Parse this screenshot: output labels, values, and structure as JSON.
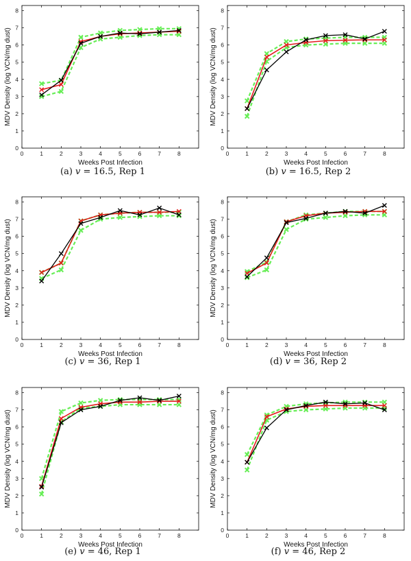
{
  "figure": {
    "ylabel": "MDV Density (log VCN/mg dust)",
    "xlabel": "Weeks Post Infection",
    "colors": {
      "observed": "#000000",
      "model": "#e41a1c",
      "bounds": "#66ee55"
    }
  },
  "chart_data": [
    {
      "type": "line",
      "caption_prefix": "(a)",
      "caption_var": "v",
      "caption_rest": " = 16.5, Rep 1",
      "xlabel": "Weeks Post Infection",
      "ylabel": "MDV Density (log VCN/mg dust)",
      "xlim": [
        0,
        9
      ],
      "ylim": [
        0,
        8.3
      ],
      "xticks": [
        0,
        1,
        2,
        3,
        4,
        5,
        6,
        7,
        8
      ],
      "yticks": [
        0,
        1,
        2,
        3,
        4,
        5,
        6,
        7,
        8
      ],
      "x": [
        1,
        2,
        3,
        4,
        5,
        6,
        7,
        8
      ],
      "series": [
        {
          "role": "upper",
          "values": [
            3.75,
            3.95,
            6.45,
            6.7,
            6.85,
            6.9,
            6.95,
            6.95
          ]
        },
        {
          "role": "lower",
          "values": [
            3.0,
            3.3,
            5.85,
            6.35,
            6.45,
            6.55,
            6.6,
            6.6
          ]
        },
        {
          "role": "model",
          "values": [
            3.4,
            3.7,
            6.2,
            6.5,
            6.65,
            6.7,
            6.75,
            6.8
          ]
        },
        {
          "role": "observed",
          "values": [
            3.1,
            3.95,
            6.1,
            6.5,
            6.7,
            6.65,
            6.75,
            6.85
          ]
        }
      ]
    },
    {
      "type": "line",
      "caption_prefix": "(b)",
      "caption_var": "v",
      "caption_rest": " = 16.5, Rep 2",
      "xlabel": "Weeks Post Infection",
      "ylabel": "MDV Density (log VCN/mg dust)",
      "xlim": [
        0,
        9
      ],
      "ylim": [
        0,
        8.3
      ],
      "xticks": [
        0,
        1,
        2,
        3,
        4,
        5,
        6,
        7,
        8
      ],
      "yticks": [
        0,
        1,
        2,
        3,
        4,
        5,
        6,
        7,
        8
      ],
      "x": [
        1,
        2,
        3,
        4,
        5,
        6,
        7,
        8
      ],
      "series": [
        {
          "role": "upper",
          "values": [
            2.75,
            5.5,
            6.2,
            6.35,
            6.4,
            6.45,
            6.45,
            6.45
          ]
        },
        {
          "role": "lower",
          "values": [
            1.85,
            5.05,
            5.85,
            6.0,
            6.05,
            6.1,
            6.1,
            6.1
          ]
        },
        {
          "role": "model",
          "values": [
            2.3,
            5.3,
            6.0,
            6.15,
            6.25,
            6.28,
            6.3,
            6.3
          ]
        },
        {
          "role": "observed",
          "values": [
            2.3,
            4.55,
            5.6,
            6.3,
            6.55,
            6.6,
            6.35,
            6.8
          ]
        }
      ]
    },
    {
      "type": "line",
      "caption_prefix": "(c)",
      "caption_var": "v",
      "caption_rest": " = 36, Rep 1",
      "xlabel": "Weeks Post Infection",
      "ylabel": "MDV Density (log VCN/mg dust)",
      "xlim": [
        0,
        9
      ],
      "ylim": [
        0,
        8.3
      ],
      "xticks": [
        0,
        1,
        2,
        3,
        4,
        5,
        6,
        7,
        8
      ],
      "yticks": [
        0,
        1,
        2,
        3,
        4,
        5,
        6,
        7,
        8
      ],
      "x": [
        1,
        2,
        3,
        4,
        5,
        6,
        7,
        8
      ],
      "series": [
        {
          "role": "upper",
          "values": [
            3.9,
            4.45,
            6.9,
            7.25,
            7.35,
            7.4,
            7.4,
            7.4
          ]
        },
        {
          "role": "lower",
          "values": [
            3.55,
            4.05,
            6.35,
            7.0,
            7.1,
            7.15,
            7.2,
            7.2
          ]
        },
        {
          "role": "model",
          "values": [
            3.9,
            4.45,
            6.9,
            7.25,
            7.35,
            7.4,
            7.4,
            7.45
          ]
        },
        {
          "role": "observed",
          "values": [
            3.4,
            5.0,
            6.75,
            7.1,
            7.5,
            7.25,
            7.65,
            7.25
          ]
        }
      ]
    },
    {
      "type": "line",
      "caption_prefix": "(d)",
      "caption_var": "v",
      "caption_rest": " = 36, Rep 2",
      "xlabel": "Weeks Post Infection",
      "ylabel": "MDV Density (log VCN/mg dust)",
      "xlim": [
        0,
        9
      ],
      "ylim": [
        0,
        8.3
      ],
      "xticks": [
        0,
        1,
        2,
        3,
        4,
        5,
        6,
        7,
        8
      ],
      "yticks": [
        0,
        1,
        2,
        3,
        4,
        5,
        6,
        7,
        8
      ],
      "x": [
        1,
        2,
        3,
        4,
        5,
        6,
        7,
        8
      ],
      "series": [
        {
          "role": "upper",
          "values": [
            3.95,
            4.5,
            6.85,
            7.25,
            7.35,
            7.45,
            7.45,
            7.45
          ]
        },
        {
          "role": "lower",
          "values": [
            3.6,
            4.05,
            6.4,
            7.0,
            7.1,
            7.2,
            7.25,
            7.25
          ]
        },
        {
          "role": "model",
          "values": [
            3.85,
            4.45,
            6.85,
            7.2,
            7.35,
            7.4,
            7.45,
            7.45
          ]
        },
        {
          "role": "observed",
          "values": [
            3.65,
            4.75,
            6.8,
            7.05,
            7.35,
            7.45,
            7.35,
            7.8
          ]
        }
      ]
    },
    {
      "type": "line",
      "caption_prefix": "(e)",
      "caption_var": "v",
      "caption_rest": " = 46, Rep 1",
      "xlabel": "Weeks Post Infection",
      "ylabel": "MDV Density (log VCN/mg dust)",
      "xlim": [
        0,
        9
      ],
      "ylim": [
        0,
        8.3
      ],
      "xticks": [
        0,
        1,
        2,
        3,
        4,
        5,
        6,
        7,
        8
      ],
      "yticks": [
        0,
        1,
        2,
        3,
        4,
        5,
        6,
        7,
        8
      ],
      "x": [
        1,
        2,
        3,
        4,
        5,
        6,
        7,
        8
      ],
      "series": [
        {
          "role": "upper",
          "values": [
            3.0,
            6.9,
            7.4,
            7.55,
            7.6,
            7.6,
            7.6,
            7.6
          ]
        },
        {
          "role": "lower",
          "values": [
            2.1,
            6.3,
            7.1,
            7.2,
            7.3,
            7.3,
            7.3,
            7.3
          ]
        },
        {
          "role": "model",
          "values": [
            2.55,
            6.5,
            7.15,
            7.35,
            7.45,
            7.45,
            7.5,
            7.5
          ]
        },
        {
          "role": "observed",
          "values": [
            2.5,
            6.25,
            7.0,
            7.2,
            7.55,
            7.7,
            7.55,
            7.8
          ]
        }
      ]
    },
    {
      "type": "line",
      "caption_prefix": "(f)",
      "caption_var": "v",
      "caption_rest": " = 46, Rep 2",
      "xlabel": "Weeks Post Infection",
      "ylabel": "MDV Density (log VCN/mg dust)",
      "xlim": [
        0,
        9
      ],
      "ylim": [
        0,
        8.3
      ],
      "xticks": [
        0,
        1,
        2,
        3,
        4,
        5,
        6,
        7,
        8
      ],
      "yticks": [
        0,
        1,
        2,
        3,
        4,
        5,
        6,
        7,
        8
      ],
      "x": [
        1,
        2,
        3,
        4,
        5,
        6,
        7,
        8
      ],
      "series": [
        {
          "role": "upper",
          "values": [
            4.4,
            6.7,
            7.2,
            7.35,
            7.4,
            7.45,
            7.45,
            7.45
          ]
        },
        {
          "role": "lower",
          "values": [
            3.5,
            6.4,
            6.9,
            7.0,
            7.05,
            7.1,
            7.1,
            7.1
          ]
        },
        {
          "role": "model",
          "values": [
            3.95,
            6.6,
            7.05,
            7.2,
            7.25,
            7.25,
            7.25,
            7.25
          ]
        },
        {
          "role": "observed",
          "values": [
            3.95,
            5.95,
            7.0,
            7.25,
            7.45,
            7.35,
            7.4,
            7.0
          ]
        }
      ]
    }
  ]
}
